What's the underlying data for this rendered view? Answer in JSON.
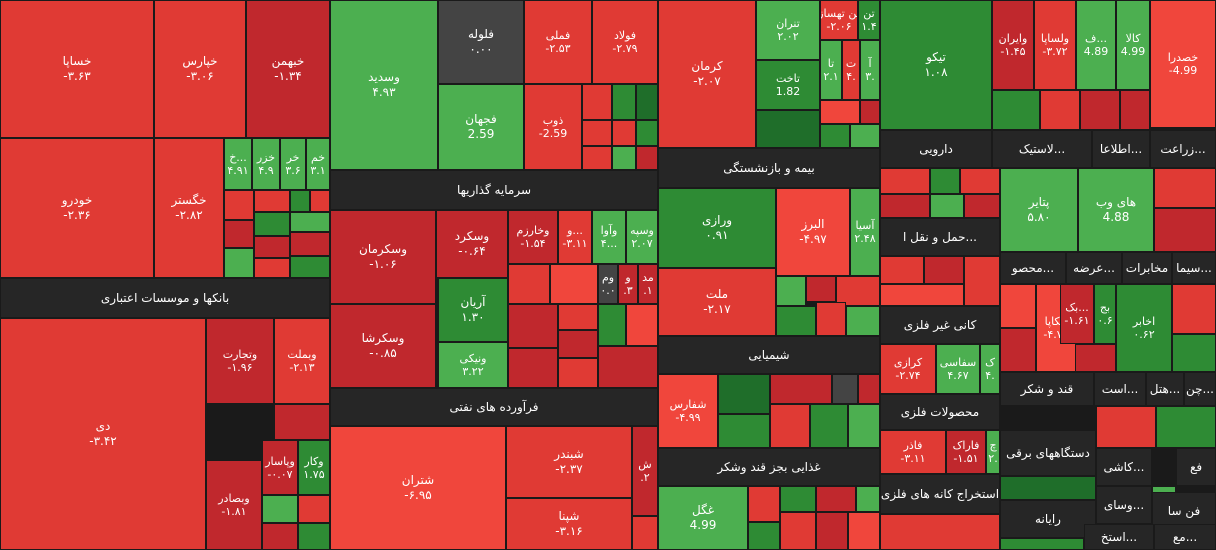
{
  "chart_data": {
    "type": "heatmap",
    "title": "",
    "palette": {
      "strong_red": "#c0282d",
      "red": "#e03a34",
      "light_red": "#f0463c",
      "green": "#4caf50",
      "strong_green": "#2e8b34",
      "dark_green": "#1f6e2a",
      "neutral": "#444444",
      "background": "#1a1a1a",
      "band": "#262626"
    },
    "sectors": [
      {
        "name": "بانکها و موسسات اعتباری"
      },
      {
        "name": "سرمایه گذاریها"
      },
      {
        "name": "فرآورده های نفتی"
      },
      {
        "name": "بیمه و بازنشستگی"
      },
      {
        "name": "شیمیایی"
      },
      {
        "name": "غذایی بجز قند وشکر"
      },
      {
        "name": "دارویی"
      },
      {
        "name": "حمل و نقل ا..."
      },
      {
        "name": "کانی غیر فلزی"
      },
      {
        "name": "محصولات فلزی"
      },
      {
        "name": "استخراج کانه های فلزی"
      },
      {
        "name": "لاستیک..."
      },
      {
        "name": "اطلاعا..."
      },
      {
        "name": "زراعت..."
      },
      {
        "name": "سیما..."
      },
      {
        "name": "مخابرات"
      },
      {
        "name": "عرضه..."
      },
      {
        "name": "محصو..."
      },
      {
        "name": "قند و شکر"
      },
      {
        "name": "است..."
      },
      {
        "name": "هتل..."
      },
      {
        "name": "چن..."
      },
      {
        "name": "دستگاههای برقی"
      },
      {
        "name": "کاشی..."
      },
      {
        "name": "فع"
      },
      {
        "name": "رایانه"
      },
      {
        "name": "وسای..."
      },
      {
        "name": "فن سا"
      },
      {
        "name": "استخ..."
      },
      {
        "name": "مع..."
      }
    ],
    "stocks": [
      {
        "symbol": "خساپا",
        "change": "-۳.۶۳",
        "value": -3.63
      },
      {
        "symbol": "خپارس",
        "change": "-۳.۰۶",
        "value": -3.06
      },
      {
        "symbol": "خبهمن",
        "change": "-۱.۳۴",
        "value": -1.34
      },
      {
        "symbol": "خودرو",
        "change": "-۲.۳۶",
        "value": -2.36
      },
      {
        "symbol": "خگستر",
        "change": "-۲.۸۲",
        "value": -2.82
      },
      {
        "symbol": "خ...",
        "change": "۴.۹۱",
        "value": 4.91
      },
      {
        "symbol": "خزر",
        "change": "۴.۹",
        "value": 4.9
      },
      {
        "symbol": "خر",
        "change": "۳.۶",
        "value": 3.6
      },
      {
        "symbol": "خم",
        "change": "۳.۱",
        "value": 3.1
      },
      {
        "symbol": "دی",
        "change": "-۳.۴۲",
        "value": -3.42
      },
      {
        "symbol": "وتجارت",
        "change": "-۱.۹۶",
        "value": -1.96
      },
      {
        "symbol": "وبملت",
        "change": "-۲.۱۳",
        "value": -2.13
      },
      {
        "symbol": "وبصادر",
        "change": "-۱.۸۱",
        "value": -1.81
      },
      {
        "symbol": "وپاسار",
        "change": "-۰.۰۷",
        "value": -0.07
      },
      {
        "symbol": "وکار",
        "change": "۱.۷۵",
        "value": 1.75
      },
      {
        "symbol": "وسدید",
        "change": "۴.۹۳",
        "value": 4.93
      },
      {
        "symbol": "فلوله",
        "change": "۰.۰۰",
        "value": 0
      },
      {
        "symbol": "فملی",
        "change": "-۲.۵۳",
        "value": -2.53
      },
      {
        "symbol": "فولاد",
        "change": "-۲.۷۹",
        "value": -2.79
      },
      {
        "symbol": "فجهان",
        "change": "2.59",
        "value": 2.59
      },
      {
        "symbol": "ذوب",
        "change": "-2.59",
        "value": -2.59
      },
      {
        "symbol": "وسکرمان",
        "change": "-۱.۰۶",
        "value": -1.06
      },
      {
        "symbol": "وسکرد",
        "change": "-۰.۶۴",
        "value": -0.64
      },
      {
        "symbol": "وخارزم",
        "change": "-۱.۵۴",
        "value": -1.54
      },
      {
        "symbol": "و...",
        "change": "-۳.۱۱",
        "value": -3.11
      },
      {
        "symbol": "وآوا",
        "change": "۴...",
        "value": 4
      },
      {
        "symbol": "وسپه",
        "change": "۲.۰۷",
        "value": 2.07
      },
      {
        "symbol": "آریان",
        "change": "۱.۳۰",
        "value": 1.3
      },
      {
        "symbol": "ونیکی",
        "change": "۳.۲۲",
        "value": 3.22
      },
      {
        "symbol": "وسکرشا",
        "change": "-۰.۸۵",
        "value": -0.85
      },
      {
        "symbol": "وم",
        "change": "۰.۰",
        "value": 0
      },
      {
        "symbol": "و",
        "change": ".۳",
        "value": -0.3
      },
      {
        "symbol": "مد",
        "change": ".۱",
        "value": -0.1
      },
      {
        "symbol": "شتران",
        "change": "-۶.۹۵",
        "value": -6.95
      },
      {
        "symbol": "شبندر",
        "change": "-۲.۳۷",
        "value": -2.37
      },
      {
        "symbol": "شپنا",
        "change": "-۳.۱۶",
        "value": -3.16
      },
      {
        "symbol": "ش",
        "change": ".۲",
        "value": -0.2
      },
      {
        "symbol": "کرمان",
        "change": "-۲.۰۷",
        "value": -2.07
      },
      {
        "symbol": "تنران",
        "change": "۲.۰۲",
        "value": 2.02
      },
      {
        "symbol": "تاخت",
        "change": "1.82",
        "value": 1.82
      },
      {
        "symbol": "تن تهساز",
        "change": "-۲.۰۶",
        "value": -2.06
      },
      {
        "symbol": "تن",
        "change": "۱.۴",
        "value": 1.4
      },
      {
        "symbol": "تا",
        "change": "۲.۱",
        "value": 2.1
      },
      {
        "symbol": "ت",
        "change": "۴.",
        "value": -4
      },
      {
        "symbol": "آ",
        "change": "۳.",
        "value": 3
      },
      {
        "symbol": "ورازی",
        "change": "۰.۹۱",
        "value": 0.91
      },
      {
        "symbol": "البرز",
        "change": "-۴.۹۷",
        "value": -4.97
      },
      {
        "symbol": "آسیا",
        "change": "۲.۴۸",
        "value": 2.48
      },
      {
        "symbol": "ملت",
        "change": "-۲.۱۷",
        "value": -2.17
      },
      {
        "symbol": "شفارس",
        "change": "-۴.۹۹",
        "value": -4.99
      },
      {
        "symbol": "غگل",
        "change": "4.99",
        "value": 4.99
      },
      {
        "symbol": "تیکو",
        "change": "۱.۰۸",
        "value": 1.08
      },
      {
        "symbol": "وایران",
        "change": "-۱.۴۵",
        "value": -1.45
      },
      {
        "symbol": "ولساپا",
        "change": "-۳.۷۲",
        "value": -3.72
      },
      {
        "symbol": "ف...",
        "change": "4.89",
        "value": 4.89
      },
      {
        "symbol": "کالا",
        "change": "4.99",
        "value": 4.99
      },
      {
        "symbol": "خصدرا",
        "change": "-4.99",
        "value": -4.99
      },
      {
        "symbol": "پتایر",
        "change": "۵.۸۰",
        "value": 5.8
      },
      {
        "symbol": "های وب",
        "change": "4.88",
        "value": 4.88
      },
      {
        "symbol": "چکاپا",
        "change": "-۴.۷۳",
        "value": -4.73
      },
      {
        "symbol": "بک...",
        "change": "-۱.۶۱",
        "value": -1.61
      },
      {
        "symbol": "بج",
        "change": "۰.۶",
        "value": 0.6
      },
      {
        "symbol": "اخابر",
        "change": "۰.۶۲",
        "value": 0.62
      },
      {
        "symbol": "کرازی",
        "change": "-۲.۷۴",
        "value": -2.74
      },
      {
        "symbol": "سفاسی",
        "change": "۴.۶۷",
        "value": 4.67
      },
      {
        "symbol": "ک",
        "change": "۴.",
        "value": 4
      },
      {
        "symbol": "فاذر",
        "change": "-۳.۱۱",
        "value": -3.11
      },
      {
        "symbol": "فاراک",
        "change": "-۱.۵۱",
        "value": -1.51
      },
      {
        "symbol": "چ",
        "change": "۲.",
        "value": 2
      }
    ]
  }
}
